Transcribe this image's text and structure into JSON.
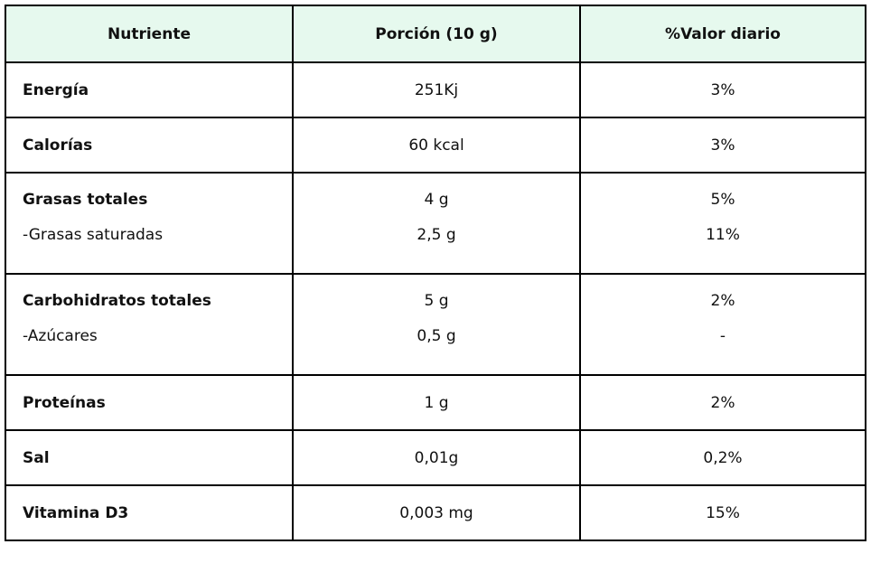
{
  "table": {
    "header_bg": "#e6f9ee",
    "headers": [
      "Nutriente",
      "Porción (10 g)",
      "%Valor diario"
    ],
    "rows": [
      {
        "name": "Energía",
        "portion": "251Kj",
        "daily": "3%",
        "bold": true
      },
      {
        "name": "Calorías",
        "portion": "60 kcal",
        "daily": "3%",
        "bold": true
      },
      {
        "name": "Grasas totales",
        "portion": "4 g",
        "daily": "5%",
        "bold": true,
        "sub": {
          "name": "-Grasas saturadas",
          "portion": "2,5 g",
          "daily": "11%"
        }
      },
      {
        "name": "Carbohidratos totales",
        "portion": "5 g",
        "daily": "2%",
        "bold": true,
        "sub": {
          "name": "-Azúcares",
          "portion": "0,5 g",
          "daily": "-"
        }
      },
      {
        "name": "Proteínas",
        "portion": "1 g",
        "daily": "2%",
        "bold": true
      },
      {
        "name": "Sal",
        "portion": "0,01g",
        "daily": "0,2%",
        "bold": true
      },
      {
        "name": "Vitamina D3",
        "portion": "0,003 mg",
        "daily": "15%",
        "bold": true
      }
    ]
  }
}
